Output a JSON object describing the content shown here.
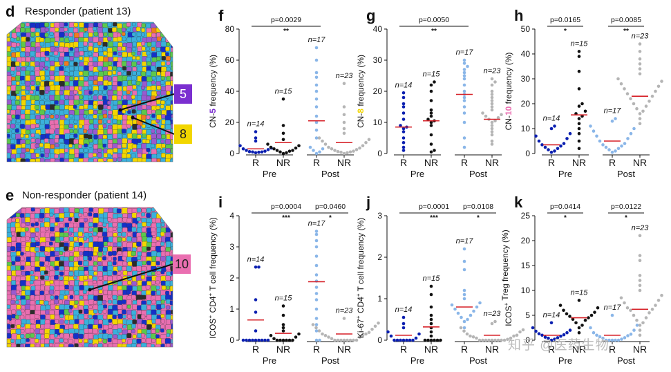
{
  "figure": {
    "panel_d": {
      "label": "d",
      "title": "Responder (patient 13)",
      "callouts": [
        {
          "text": "5",
          "color": "#7b2fd0",
          "text_color": "#ffffff"
        },
        {
          "text": "8",
          "color": "#f2d600",
          "text_color": "#222222"
        }
      ]
    },
    "panel_e": {
      "label": "e",
      "title": "Non-responder (patient 14)",
      "callouts": [
        {
          "text": "10",
          "color": "#ea6fb1",
          "text_color": "#222222"
        }
      ]
    },
    "watermark": "知乎 @医药生物",
    "group_labels": {
      "pre": "Pre",
      "post": "Post",
      "r": "R",
      "nr": "NR"
    },
    "colors": {
      "pre_r": "#0a1fb0",
      "pre_nr": "#111111",
      "post_r": "#8ab6e8",
      "post_nr": "#b5b5b5",
      "median": "#d61f26"
    }
  },
  "chart_data": [
    {
      "id": "f",
      "type": "scatter",
      "label": "f",
      "ylabel": "CN-5 frequency (%)",
      "ylabel_pre": "CN-",
      "ylabel_badge": "5",
      "ylabel_post": " frequency (%)",
      "badge_color": "#7b2fd0",
      "badge_text_color": "#ffffff",
      "ylim": [
        0,
        80
      ],
      "yticks": [
        "0",
        "20",
        "40",
        "60",
        "80"
      ],
      "categories": [
        "R",
        "NR",
        "R",
        "NR"
      ],
      "n_labels": [
        "n=14",
        "n=15",
        "n=17",
        "n=23"
      ],
      "medians": [
        3,
        7,
        21,
        7
      ],
      "brackets": [
        {
          "from": 0,
          "to": 2,
          "p": "p=0.0029",
          "stars": "**"
        }
      ],
      "series": [
        {
          "name": "Pre R",
          "values": [
            0.5,
            1,
            1.5,
            2,
            3,
            5,
            8,
            10,
            14,
            3.5,
            1,
            0.8,
            2.5,
            1.2
          ]
        },
        {
          "name": "Pre NR",
          "values": [
            0,
            0.5,
            1,
            2,
            3,
            4,
            6,
            9,
            13,
            18,
            35,
            5,
            2,
            1.5,
            3.5
          ]
        },
        {
          "name": "Post R",
          "values": [
            0,
            1,
            2,
            4,
            10,
            15,
            20,
            24,
            30,
            35,
            40,
            44,
            49,
            52,
            60,
            68,
            3
          ]
        },
        {
          "name": "Post NR",
          "values": [
            0,
            0.5,
            1,
            1.5,
            2,
            3,
            4,
            5,
            6,
            8,
            10,
            13,
            16,
            20,
            25,
            30,
            45,
            2.5,
            3.5,
            0.8,
            1.2,
            7,
            9
          ]
        }
      ]
    },
    {
      "id": "g",
      "type": "scatter",
      "label": "g",
      "ylabel": "CN-8 frequency (%)",
      "ylabel_pre": "CN-",
      "ylabel_badge": "8",
      "ylabel_post": " frequency (%)",
      "badge_color": "#f2d600",
      "badge_text_color": "#222222",
      "ylim": [
        0,
        40
      ],
      "yticks": [
        "0",
        "10",
        "20",
        "30",
        "40"
      ],
      "categories": [
        "R",
        "NR",
        "R",
        "NR"
      ],
      "n_labels": [
        "n=14",
        "n=15",
        "n=17",
        "n=23"
      ],
      "medians": [
        8.5,
        10.5,
        19,
        11
      ],
      "brackets": [
        {
          "from": 0,
          "to": 2,
          "p": "p=0.0050",
          "stars": "**"
        }
      ],
      "series": [
        {
          "name": "Pre R",
          "values": [
            1,
            2,
            3.5,
            5,
            7,
            8,
            8.5,
            9,
            11,
            13,
            15,
            16,
            18,
            19.5
          ]
        },
        {
          "name": "Pre NR",
          "values": [
            0.5,
            1,
            3,
            6,
            9,
            10,
            10.5,
            11,
            12,
            13,
            14,
            17,
            20,
            22,
            23
          ]
        },
        {
          "name": "Post R",
          "values": [
            2,
            5,
            10,
            13,
            15,
            17,
            18,
            19,
            20,
            22,
            24,
            25,
            26,
            27,
            28,
            29,
            30
          ]
        },
        {
          "name": "Post NR",
          "values": [
            3,
            4,
            6,
            7,
            8,
            9,
            10,
            10.5,
            11,
            11.5,
            12,
            12.5,
            13,
            14,
            15,
            16,
            17,
            18,
            19,
            20,
            22,
            23,
            24
          ]
        }
      ]
    },
    {
      "id": "h",
      "type": "scatter",
      "label": "h",
      "ylabel": "CN-10 frequency (%)",
      "ylabel_pre": "CN-",
      "ylabel_badge": "10",
      "ylabel_post": " frequency (%)",
      "badge_color": "#ea6fb1",
      "badge_text_color": "#222222",
      "ylim": [
        0,
        50
      ],
      "yticks": [
        "0",
        "10",
        "20",
        "30",
        "40",
        "50"
      ],
      "categories": [
        "R",
        "NR",
        "R",
        "NR"
      ],
      "n_labels": [
        "n=14",
        "n=15",
        "n=17",
        "n=23"
      ],
      "medians": [
        3.5,
        15.5,
        5,
        23
      ],
      "brackets": [
        {
          "from": 0,
          "to": 1,
          "p": "p=0.0165",
          "stars": "*"
        },
        {
          "from": 2,
          "to": 3,
          "p": "p=0.0085",
          "stars": "**"
        }
      ],
      "series": [
        {
          "name": "Pre R",
          "values": [
            0.5,
            1,
            1.5,
            2,
            2.5,
            3,
            3.5,
            4,
            5,
            6,
            7,
            8,
            10,
            11
          ]
        },
        {
          "name": "Pre NR",
          "values": [
            2,
            5,
            8,
            10,
            12,
            14,
            15,
            16,
            17,
            19,
            20,
            26,
            33,
            39,
            41
          ]
        },
        {
          "name": "Post R",
          "values": [
            0.5,
            1,
            1.5,
            2,
            2.5,
            3,
            3.5,
            4,
            5,
            6,
            7,
            8,
            9,
            10,
            11,
            13,
            14
          ]
        },
        {
          "name": "Post NR",
          "values": [
            12,
            14,
            16,
            17,
            18,
            19,
            20,
            21,
            22,
            23,
            24,
            25,
            26,
            27,
            28,
            29,
            30,
            32,
            34,
            36,
            38,
            41,
            44
          ]
        }
      ]
    },
    {
      "id": "i",
      "type": "scatter",
      "label": "i",
      "ylabel": "ICOS+ CD4+ T cell frequency (%)",
      "ylabel_pre": "ICOS",
      "ylabel_sup1": "+",
      "ylabel_mid": " CD4",
      "ylabel_sup2": "+",
      "ylabel_post": " T cell frequency (%)",
      "ylim": [
        0,
        4
      ],
      "yticks": [
        "0",
        "1",
        "2",
        "3",
        "4"
      ],
      "categories": [
        "R",
        "NR",
        "R",
        "NR"
      ],
      "n_labels": [
        "n=14",
        "n=15",
        "n=17",
        "n=23"
      ],
      "medians": [
        0.65,
        0.22,
        1.88,
        0.2
      ],
      "brackets": [
        {
          "from": 0,
          "to": 2,
          "p": "p=0.0004",
          "stars": "***"
        },
        {
          "from": 2,
          "to": 3,
          "p": "p=0.0460",
          "stars": "*"
        }
      ],
      "series": [
        {
          "name": "Pre R",
          "values": [
            0,
            0,
            0,
            0,
            0,
            0,
            0,
            0,
            0,
            0.3,
            0.9,
            1.3,
            2.35,
            2.35
          ]
        },
        {
          "name": "Pre NR",
          "values": [
            0,
            0,
            0,
            0,
            0,
            0,
            0.05,
            0.1,
            0.15,
            0.2,
            0.3,
            0.4,
            0.5,
            0.8,
            1.1
          ]
        },
        {
          "name": "Post R",
          "values": [
            0,
            0,
            0.3,
            0.7,
            1,
            1.3,
            1.5,
            1.7,
            1.9,
            2.1,
            2.4,
            2.7,
            3,
            3.2,
            3.4,
            3.5,
            0.5
          ]
        },
        {
          "name": "Post NR",
          "values": [
            0,
            0,
            0,
            0,
            0,
            0,
            0,
            0,
            0.05,
            0.1,
            0.1,
            0.15,
            0.15,
            0.2,
            0.2,
            0.25,
            0.3,
            0.35,
            0.4,
            0.45,
            0.5,
            0.55,
            0.7
          ]
        }
      ]
    },
    {
      "id": "j",
      "type": "scatter",
      "label": "j",
      "ylabel": "Ki-67+ CD4+ T cell frequency (%)",
      "ylabel_pre": "Ki-67",
      "ylabel_sup1": "+",
      "ylabel_mid": " CD4",
      "ylabel_sup2": "+",
      "ylabel_post": " T cell frequency (%)",
      "ylim": [
        0,
        3
      ],
      "yticks": [
        "0",
        "1",
        "2",
        "3"
      ],
      "categories": [
        "R",
        "NR",
        "R",
        "NR"
      ],
      "n_labels": [
        "n=14",
        "n=15",
        "n=17",
        "n=23"
      ],
      "medians": [
        0.12,
        0.32,
        0.8,
        0.12
      ],
      "brackets": [
        {
          "from": 0,
          "to": 2,
          "p": "p=0.0001",
          "stars": "***"
        },
        {
          "from": 2,
          "to": 3,
          "p": "p=0.0108",
          "stars": "*"
        }
      ],
      "series": [
        {
          "name": "Pre R",
          "values": [
            0,
            0,
            0,
            0,
            0,
            0,
            0,
            0.05,
            0.1,
            0.15,
            0.2,
            0.3,
            0.4,
            0.55
          ]
        },
        {
          "name": "Pre NR",
          "values": [
            0,
            0,
            0,
            0,
            0,
            0,
            0.1,
            0.2,
            0.3,
            0.4,
            0.5,
            0.6,
            0.8,
            1.1,
            1.3
          ]
        },
        {
          "name": "Post R",
          "values": [
            0.3,
            0.45,
            0.5,
            0.55,
            0.6,
            0.65,
            0.7,
            0.75,
            0.8,
            0.85,
            0.9,
            1,
            1.1,
            1.2,
            1.7,
            1.9,
            2.2
          ]
        },
        {
          "name": "Post NR",
          "values": [
            0,
            0,
            0,
            0,
            0,
            0,
            0,
            0,
            0,
            0.02,
            0.05,
            0.05,
            0.08,
            0.1,
            0.1,
            0.12,
            0.15,
            0.2,
            0.22,
            0.25,
            0.3,
            0.4,
            0.45
          ]
        }
      ]
    },
    {
      "id": "k",
      "type": "scatter",
      "label": "k",
      "ylabel": "ICOS+ Treg frequency (%)",
      "ylabel_pre": "ICOS",
      "ylabel_sup1": "+",
      "ylabel_mid": "",
      "ylabel_sup2": "",
      "ylabel_post": " Treg frequency (%)",
      "ylim": [
        0,
        25
      ],
      "yticks": [
        "0",
        "5",
        "10",
        "15",
        "20",
        "25"
      ],
      "categories": [
        "R",
        "NR",
        "R",
        "NR"
      ],
      "n_labels": [
        "n=14",
        "n=15",
        "n=17",
        "n=23"
      ],
      "medians": [
        1,
        4.5,
        1,
        6.2
      ],
      "brackets": [
        {
          "from": 0,
          "to": 1,
          "p": "p=0.0414",
          "stars": "*"
        },
        {
          "from": 2,
          "to": 3,
          "p": "p=0.0122",
          "stars": "*"
        }
      ],
      "series": [
        {
          "name": "Pre R",
          "values": [
            0,
            0.2,
            0.4,
            0.5,
            0.6,
            0.8,
            1,
            1.1,
            1.3,
            1.5,
            1.8,
            2,
            2.5,
            3.5
          ]
        },
        {
          "name": "Pre NR",
          "values": [
            1.5,
            2.5,
            3,
            3.5,
            4,
            4.2,
            4.5,
            4.8,
            5,
            5.3,
            5.6,
            6,
            6.5,
            7,
            8
          ]
        },
        {
          "name": "Post R",
          "values": [
            0,
            0,
            0,
            0,
            0,
            0.2,
            0.4,
            0.5,
            0.7,
            0.9,
            1,
            1.2,
            1.5,
            2,
            2.5,
            3,
            5
          ]
        },
        {
          "name": "Post NR",
          "values": [
            1,
            2,
            3,
            3.5,
            4,
            4.5,
            5,
            5.5,
            6,
            6.2,
            6.5,
            7,
            7.5,
            8,
            8.5,
            9,
            10,
            11,
            12,
            13,
            16,
            17,
            21
          ]
        }
      ]
    }
  ]
}
